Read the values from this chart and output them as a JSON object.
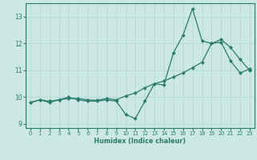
{
  "xlabel": "Humidex (Indice chaleur)",
  "x": [
    0,
    1,
    2,
    3,
    4,
    5,
    6,
    7,
    8,
    9,
    10,
    11,
    12,
    13,
    14,
    15,
    16,
    17,
    18,
    19,
    20,
    21,
    22,
    23
  ],
  "line_zigzag": [
    9.8,
    9.9,
    9.8,
    9.9,
    10.0,
    9.9,
    9.85,
    9.85,
    9.9,
    9.85,
    9.35,
    9.2,
    9.85,
    10.5,
    10.45,
    11.65,
    12.3,
    13.3,
    12.1,
    12.0,
    12.15,
    11.85,
    11.4,
    11.0
  ],
  "line_trend": [
    9.8,
    9.9,
    9.85,
    9.9,
    9.95,
    9.95,
    9.9,
    9.88,
    9.95,
    9.9,
    10.05,
    10.15,
    10.35,
    10.5,
    10.6,
    10.75,
    10.9,
    11.1,
    11.3,
    12.0,
    12.05,
    11.35,
    10.9,
    11.05
  ],
  "ylim": [
    8.85,
    13.5
  ],
  "yticks": [
    9,
    10,
    11,
    12,
    13
  ],
  "xticks": [
    0,
    1,
    2,
    3,
    4,
    5,
    6,
    7,
    8,
    9,
    10,
    11,
    12,
    13,
    14,
    15,
    16,
    17,
    18,
    19,
    20,
    21,
    22,
    23
  ],
  "line_color": "#2d7a6e",
  "bg_color": "#cbe8e3",
  "grid_color": "#b0d8d0",
  "fig_bg": "#cbe8e3",
  "spine_color": "#2d7a6e"
}
